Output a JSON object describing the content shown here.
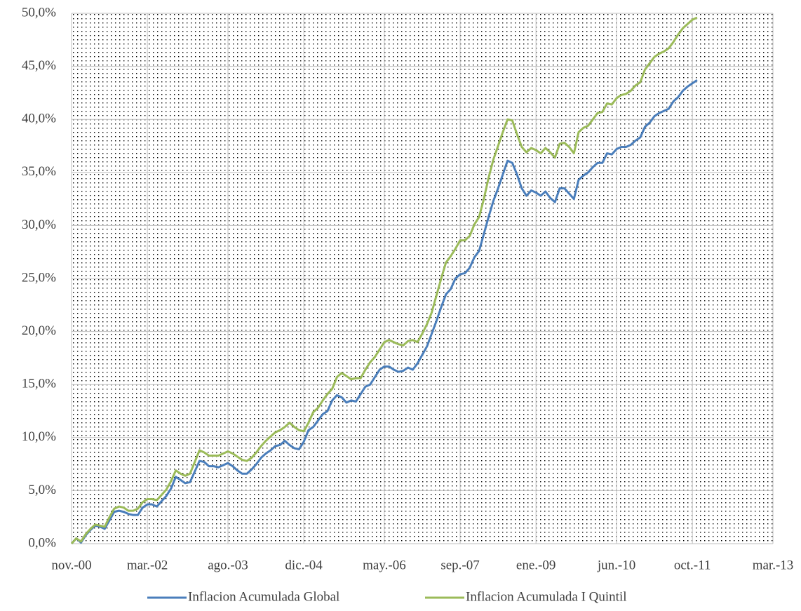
{
  "chart_data": {
    "type": "line",
    "x": [
      "2000-11",
      "2000-12",
      "2001-01",
      "2001-02",
      "2001-03",
      "2001-04",
      "2001-05",
      "2001-06",
      "2001-07",
      "2001-08",
      "2001-09",
      "2001-10",
      "2001-11",
      "2001-12",
      "2002-01",
      "2002-02",
      "2002-03",
      "2002-04",
      "2002-05",
      "2002-06",
      "2002-07",
      "2002-08",
      "2002-09",
      "2002-10",
      "2002-11",
      "2002-12",
      "2003-01",
      "2003-02",
      "2003-03",
      "2003-04",
      "2003-05",
      "2003-06",
      "2003-07",
      "2003-08",
      "2003-09",
      "2003-10",
      "2003-11",
      "2003-12",
      "2004-01",
      "2004-02",
      "2004-03",
      "2004-04",
      "2004-05",
      "2004-06",
      "2004-07",
      "2004-08",
      "2004-09",
      "2004-10",
      "2004-11",
      "2004-12",
      "2005-01",
      "2005-02",
      "2005-03",
      "2005-04",
      "2005-05",
      "2005-06",
      "2005-07",
      "2005-08",
      "2005-09",
      "2005-10",
      "2005-11",
      "2005-12",
      "2006-01",
      "2006-02",
      "2006-03",
      "2006-04",
      "2006-05",
      "2006-06",
      "2006-07",
      "2006-08",
      "2006-09",
      "2006-10",
      "2006-11",
      "2006-12",
      "2007-01",
      "2007-02",
      "2007-03",
      "2007-04",
      "2007-05",
      "2007-06",
      "2007-07",
      "2007-08",
      "2007-09",
      "2007-10",
      "2007-11",
      "2007-12",
      "2008-01",
      "2008-02",
      "2008-03",
      "2008-04",
      "2008-05",
      "2008-06",
      "2008-07",
      "2008-08",
      "2008-09",
      "2008-10",
      "2008-11",
      "2008-12",
      "2009-01",
      "2009-02",
      "2009-03",
      "2009-04",
      "2009-05",
      "2009-06",
      "2009-07",
      "2009-08",
      "2009-09",
      "2009-10",
      "2009-11",
      "2009-12",
      "2010-01",
      "2010-02",
      "2010-03",
      "2010-04",
      "2010-05",
      "2010-06",
      "2010-07",
      "2010-08",
      "2010-09",
      "2010-10",
      "2010-11",
      "2010-12",
      "2011-01",
      "2011-02",
      "2011-03",
      "2011-04",
      "2011-05",
      "2011-06",
      "2011-07",
      "2011-08",
      "2011-09",
      "2011-10",
      "2011-11"
    ],
    "series": [
      {
        "name": "Inflacion Acumulada Global",
        "color": "#4a7ebb",
        "values": [
          0,
          0.5,
          0.1,
          0.8,
          1.3,
          1.7,
          1.6,
          1.4,
          2.2,
          3.0,
          3.1,
          3.0,
          2.8,
          2.7,
          2.7,
          3.4,
          3.7,
          3.7,
          3.5,
          4.0,
          4.5,
          5.2,
          6.3,
          6.0,
          5.7,
          5.8,
          6.8,
          7.8,
          7.7,
          7.3,
          7.3,
          7.2,
          7.4,
          7.6,
          7.3,
          6.9,
          6.6,
          6.6,
          7.0,
          7.5,
          8.1,
          8.5,
          8.8,
          9.2,
          9.3,
          9.7,
          9.3,
          9.0,
          8.9,
          9.6,
          10.7,
          11.0,
          11.6,
          12.2,
          12.5,
          13.5,
          14.0,
          13.8,
          13.3,
          13.5,
          13.4,
          14.1,
          14.8,
          15.0,
          15.7,
          16.4,
          16.7,
          16.7,
          16.4,
          16.2,
          16.3,
          16.6,
          16.4,
          17.0,
          17.8,
          18.6,
          19.8,
          21.0,
          22.3,
          23.5,
          24.0,
          25.0,
          25.4,
          25.5,
          26.0,
          27.0,
          27.6,
          29.2,
          30.8,
          32.3,
          33.5,
          34.8,
          36.1,
          35.9,
          34.8,
          33.5,
          32.8,
          33.3,
          33.1,
          32.8,
          33.2,
          32.6,
          32.2,
          33.5,
          33.5,
          33.0,
          32.5,
          34.3,
          34.7,
          35.0,
          35.5,
          35.9,
          35.9,
          36.8,
          36.7,
          37.2,
          37.4,
          37.4,
          37.6,
          38.0,
          38.3,
          39.3,
          39.7,
          40.3,
          40.6,
          40.8,
          41.0,
          41.7,
          42.1,
          42.7,
          43.1,
          43.4,
          43.7
        ]
      },
      {
        "name": "Inflacion Acumulada I Quintil",
        "color": "#9bbb59",
        "values": [
          0,
          0.5,
          0.2,
          0.9,
          1.4,
          1.8,
          1.7,
          1.6,
          2.5,
          3.3,
          3.5,
          3.4,
          3.1,
          3.1,
          3.3,
          3.9,
          4.2,
          4.2,
          4.1,
          4.6,
          5.1,
          5.9,
          6.9,
          6.6,
          6.4,
          6.6,
          7.7,
          8.8,
          8.6,
          8.3,
          8.3,
          8.3,
          8.5,
          8.7,
          8.5,
          8.2,
          7.9,
          7.8,
          8.1,
          8.6,
          9.2,
          9.7,
          10.1,
          10.5,
          10.7,
          11.0,
          11.4,
          11.0,
          10.7,
          10.6,
          11.4,
          12.4,
          12.8,
          13.5,
          14.1,
          14.6,
          15.7,
          16.1,
          15.8,
          15.5,
          15.6,
          15.6,
          16.4,
          17.1,
          17.6,
          18.3,
          19.0,
          19.2,
          19.0,
          18.8,
          18.7,
          19.1,
          19.2,
          19.0,
          19.8,
          20.7,
          21.8,
          23.4,
          25.0,
          26.5,
          27.1,
          27.8,
          28.6,
          28.6,
          29.0,
          30.1,
          30.8,
          32.5,
          34.5,
          36.2,
          37.5,
          38.8,
          40.0,
          39.9,
          38.6,
          37.4,
          36.9,
          37.3,
          37.1,
          36.8,
          37.3,
          36.9,
          36.4,
          37.7,
          37.8,
          37.4,
          36.8,
          38.8,
          39.2,
          39.4,
          40.0,
          40.6,
          40.7,
          41.5,
          41.4,
          42.0,
          42.3,
          42.4,
          42.7,
          43.2,
          43.5,
          44.7,
          45.3,
          45.9,
          46.2,
          46.4,
          46.7,
          47.3,
          48.0,
          48.6,
          49.0,
          49.4,
          49.6
        ]
      }
    ],
    "xlim": [
      "2000-11",
      "2013-03"
    ],
    "xticks": [
      {
        "value": "2000-11",
        "label": "nov.-00"
      },
      {
        "value": "2002-03",
        "label": "mar.-02"
      },
      {
        "value": "2003-08",
        "label": "ago.-03"
      },
      {
        "value": "2004-12",
        "label": "dic.-04"
      },
      {
        "value": "2006-05",
        "label": "may.-06"
      },
      {
        "value": "2007-09",
        "label": "sep.-07"
      },
      {
        "value": "2009-01",
        "label": "ene.-09"
      },
      {
        "value": "2010-06",
        "label": "jun.-10"
      },
      {
        "value": "2011-10",
        "label": "oct.-11"
      },
      {
        "value": "2013-03",
        "label": "mar.-13"
      }
    ],
    "ylim": [
      0,
      50
    ],
    "yticks": [
      {
        "value": 0,
        "label": "0,0%"
      },
      {
        "value": 5,
        "label": "5,0%"
      },
      {
        "value": 10,
        "label": "10,0%"
      },
      {
        "value": 15,
        "label": "15,0%"
      },
      {
        "value": 20,
        "label": "20,0%"
      },
      {
        "value": 25,
        "label": "25,0%"
      },
      {
        "value": 30,
        "label": "30,0%"
      },
      {
        "value": 35,
        "label": "35,0%"
      },
      {
        "value": 40,
        "label": "40,0%"
      },
      {
        "value": 45,
        "label": "45,0%"
      },
      {
        "value": 50,
        "label": "50,0%"
      }
    ],
    "grid": true,
    "legend": "bottom"
  }
}
